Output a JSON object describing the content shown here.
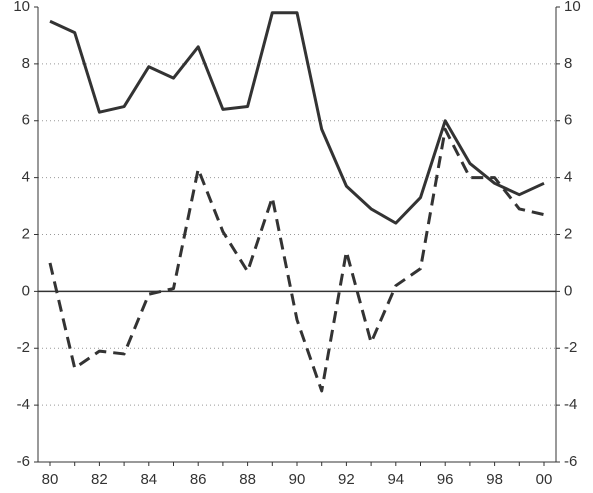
{
  "chart_data": {
    "type": "line",
    "categories": [
      "80",
      null,
      "82",
      null,
      "84",
      null,
      "86",
      null,
      "88",
      null,
      "90",
      null,
      "92",
      null,
      "94",
      null,
      "96",
      null,
      "98",
      null,
      "00"
    ],
    "series": [
      {
        "color": "#333333",
        "style": "solid",
        "values": [
          9.5,
          9.1,
          6.3,
          6.5,
          7.9,
          7.5,
          8.6,
          6.4,
          6.5,
          9.8,
          9.8,
          5.7,
          3.7,
          2.9,
          2.4,
          3.3,
          6.0,
          4.5,
          3.8,
          3.4,
          3.8
        ]
      },
      {
        "color": "#333333",
        "style": "dashed",
        "values": [
          1.0,
          -2.7,
          -2.1,
          -2.2,
          -0.1,
          0.1,
          4.3,
          2.1,
          0.7,
          3.3,
          -1.0,
          -3.5,
          1.4,
          -1.8,
          0.2,
          0.8,
          5.7,
          4.0,
          4.0,
          2.9,
          2.7
        ]
      }
    ],
    "ylim": [
      -6,
      10
    ],
    "yticks": [
      -6,
      -4,
      -2,
      0,
      2,
      4,
      6,
      8,
      10
    ],
    "y2lim": [
      -6,
      10
    ],
    "y2ticks": [
      -6,
      -4,
      -2,
      0,
      2,
      4,
      6,
      8,
      10
    ],
    "grid": true
  }
}
